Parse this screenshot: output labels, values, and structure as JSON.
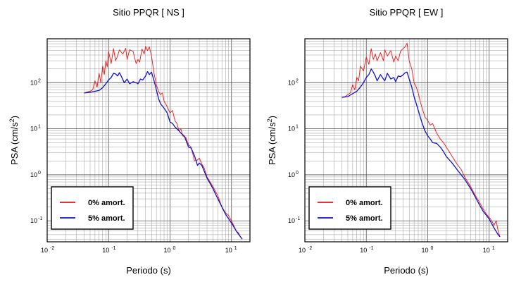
{
  "chart_data": [
    {
      "type": "line",
      "title": "Sitio PPQR [ NS ]",
      "xlabel": "Periodo (s)",
      "ylabel": "PSA (cm/s",
      "ylabel_sup": "2",
      "ylabel_close": ")",
      "xscale": "log",
      "yscale": "log",
      "xlim": [
        0.01,
        20
      ],
      "ylim": [
        0.035,
        900
      ],
      "xticks": [
        {
          "base": "10",
          "exp": "-2",
          "v": 0.01
        },
        {
          "base": "10",
          "exp": "-1",
          "v": 0.1
        },
        {
          "base": "10",
          "exp": "0",
          "v": 1
        },
        {
          "base": "10",
          "exp": "1",
          "v": 10
        }
      ],
      "yticks": [
        {
          "base": "10",
          "exp": "-1",
          "v": 0.1
        },
        {
          "base": "10",
          "exp": "0",
          "v": 1
        },
        {
          "base": "10",
          "exp": "1",
          "v": 10
        },
        {
          "base": "10",
          "exp": "2",
          "v": 100
        }
      ],
      "grid": true,
      "legend_position": "bottom-left",
      "series": [
        {
          "name": "0% amort.",
          "color": "#ee1111",
          "points": [
            [
              0.04,
              60
            ],
            [
              0.045,
              63
            ],
            [
              0.05,
              65
            ],
            [
              0.055,
              70
            ],
            [
              0.06,
              110
            ],
            [
              0.065,
              80
            ],
            [
              0.07,
              160
            ],
            [
              0.075,
              100
            ],
            [
              0.08,
              230
            ],
            [
              0.085,
              150
            ],
            [
              0.09,
              300
            ],
            [
              0.095,
              220
            ],
            [
              0.1,
              480
            ],
            [
              0.11,
              260
            ],
            [
              0.12,
              550
            ],
            [
              0.13,
              300
            ],
            [
              0.14,
              380
            ],
            [
              0.15,
              520
            ],
            [
              0.17,
              420
            ],
            [
              0.19,
              560
            ],
            [
              0.2,
              320
            ],
            [
              0.22,
              520
            ],
            [
              0.25,
              480
            ],
            [
              0.28,
              260
            ],
            [
              0.3,
              320
            ],
            [
              0.32,
              280
            ],
            [
              0.35,
              540
            ],
            [
              0.38,
              420
            ],
            [
              0.4,
              620
            ],
            [
              0.43,
              500
            ],
            [
              0.46,
              600
            ],
            [
              0.5,
              380
            ],
            [
              0.55,
              160
            ],
            [
              0.6,
              90
            ],
            [
              0.65,
              65
            ],
            [
              0.7,
              55
            ],
            [
              0.75,
              60
            ],
            [
              0.8,
              40
            ],
            [
              0.9,
              30
            ],
            [
              1.0,
              22
            ],
            [
              1.1,
              25
            ],
            [
              1.2,
              15
            ],
            [
              1.3,
              13
            ],
            [
              1.4,
              9
            ],
            [
              1.5,
              10
            ],
            [
              1.6,
              7
            ],
            [
              1.8,
              6.5
            ],
            [
              2.0,
              4.5
            ],
            [
              2.2,
              4
            ],
            [
              2.5,
              2
            ],
            [
              2.8,
              2.1
            ],
            [
              3.0,
              2.3
            ],
            [
              3.3,
              1.7
            ],
            [
              3.6,
              1.4
            ],
            [
              4.0,
              0.9
            ],
            [
              5.0,
              0.55
            ],
            [
              6.0,
              0.35
            ],
            [
              7.0,
              0.2
            ],
            [
              8.0,
              0.15
            ],
            [
              9.0,
              0.13
            ],
            [
              10.0,
              0.1
            ],
            [
              12.0,
              0.06
            ],
            [
              13.0,
              0.055
            ],
            [
              14.0,
              0.045
            ]
          ]
        },
        {
          "name": "5% amort.",
          "color": "#1111cc",
          "points": [
            [
              0.04,
              60
            ],
            [
              0.05,
              62
            ],
            [
              0.06,
              65
            ],
            [
              0.07,
              68
            ],
            [
              0.08,
              78
            ],
            [
              0.09,
              95
            ],
            [
              0.1,
              115
            ],
            [
              0.11,
              130
            ],
            [
              0.12,
              160
            ],
            [
              0.13,
              155
            ],
            [
              0.14,
              140
            ],
            [
              0.15,
              165
            ],
            [
              0.16,
              140
            ],
            [
              0.18,
              100
            ],
            [
              0.2,
              120
            ],
            [
              0.22,
              95
            ],
            [
              0.25,
              105
            ],
            [
              0.28,
              100
            ],
            [
              0.3,
              95
            ],
            [
              0.33,
              120
            ],
            [
              0.36,
              115
            ],
            [
              0.4,
              140
            ],
            [
              0.43,
              175
            ],
            [
              0.46,
              150
            ],
            [
              0.5,
              170
            ],
            [
              0.55,
              110
            ],
            [
              0.6,
              70
            ],
            [
              0.65,
              45
            ],
            [
              0.7,
              35
            ],
            [
              0.8,
              28
            ],
            [
              0.9,
              22
            ],
            [
              1.0,
              14
            ],
            [
              1.1,
              13
            ],
            [
              1.2,
              11
            ],
            [
              1.4,
              9
            ],
            [
              1.5,
              8
            ],
            [
              1.7,
              7
            ],
            [
              2.0,
              4
            ],
            [
              2.2,
              3.8
            ],
            [
              2.5,
              2.6
            ],
            [
              2.8,
              1.6
            ],
            [
              3.0,
              1.8
            ],
            [
              3.3,
              1.6
            ],
            [
              3.6,
              1.2
            ],
            [
              4.0,
              0.85
            ],
            [
              5.0,
              0.5
            ],
            [
              6.0,
              0.3
            ],
            [
              7.0,
              0.2
            ],
            [
              8.0,
              0.14
            ],
            [
              10.0,
              0.09
            ],
            [
              12.0,
              0.06
            ],
            [
              14.0,
              0.045
            ],
            [
              15.0,
              0.04
            ]
          ]
        }
      ]
    },
    {
      "type": "line",
      "title": "Sitio PPQR [ EW ]",
      "xlabel": "Periodo (s)",
      "ylabel": "PSA (cm/s",
      "ylabel_sup": "2",
      "ylabel_close": ")",
      "xscale": "log",
      "yscale": "log",
      "xlim": [
        0.01,
        20
      ],
      "ylim": [
        0.035,
        900
      ],
      "xticks": [
        {
          "base": "10",
          "exp": "-2",
          "v": 0.01
        },
        {
          "base": "10",
          "exp": "-1",
          "v": 0.1
        },
        {
          "base": "10",
          "exp": "0",
          "v": 1
        },
        {
          "base": "10",
          "exp": "1",
          "v": 10
        }
      ],
      "yticks": [
        {
          "base": "10",
          "exp": "-1",
          "v": 0.1
        },
        {
          "base": "10",
          "exp": "0",
          "v": 1
        },
        {
          "base": "10",
          "exp": "1",
          "v": 10
        },
        {
          "base": "10",
          "exp": "2",
          "v": 100
        }
      ],
      "grid": true,
      "legend_position": "bottom-left",
      "series": [
        {
          "name": "0% amort.",
          "color": "#ee1111",
          "points": [
            [
              0.04,
              48
            ],
            [
              0.045,
              50
            ],
            [
              0.05,
              55
            ],
            [
              0.055,
              60
            ],
            [
              0.06,
              90
            ],
            [
              0.065,
              70
            ],
            [
              0.07,
              130
            ],
            [
              0.075,
              110
            ],
            [
              0.08,
              230
            ],
            [
              0.09,
              180
            ],
            [
              0.1,
              360
            ],
            [
              0.11,
              250
            ],
            [
              0.12,
              550
            ],
            [
              0.13,
              320
            ],
            [
              0.14,
              420
            ],
            [
              0.15,
              300
            ],
            [
              0.17,
              450
            ],
            [
              0.19,
              300
            ],
            [
              0.2,
              520
            ],
            [
              0.22,
              380
            ],
            [
              0.25,
              500
            ],
            [
              0.28,
              280
            ],
            [
              0.3,
              380
            ],
            [
              0.33,
              300
            ],
            [
              0.36,
              480
            ],
            [
              0.4,
              560
            ],
            [
              0.43,
              600
            ],
            [
              0.46,
              720
            ],
            [
              0.5,
              300
            ],
            [
              0.55,
              200
            ],
            [
              0.6,
              100
            ],
            [
              0.65,
              80
            ],
            [
              0.7,
              60
            ],
            [
              0.75,
              40
            ],
            [
              0.8,
              30
            ],
            [
              0.9,
              18
            ],
            [
              1.0,
              15
            ],
            [
              1.1,
              12
            ],
            [
              1.2,
              13
            ],
            [
              1.4,
              8
            ],
            [
              1.6,
              6
            ],
            [
              1.8,
              5
            ],
            [
              2.0,
              4
            ],
            [
              2.5,
              2.5
            ],
            [
              3.0,
              1.7
            ],
            [
              3.5,
              1.3
            ],
            [
              4.0,
              0.9
            ],
            [
              5.0,
              0.55
            ],
            [
              6.0,
              0.35
            ],
            [
              7.0,
              0.25
            ],
            [
              8.0,
              0.18
            ],
            [
              9.0,
              0.14
            ],
            [
              10.0,
              0.12
            ],
            [
              11.0,
              0.1
            ],
            [
              12.0,
              0.08
            ],
            [
              13.0,
              0.1
            ],
            [
              14.0,
              0.06
            ],
            [
              15.0,
              0.045
            ]
          ]
        },
        {
          "name": "5% amort.",
          "color": "#1111cc",
          "points": [
            [
              0.04,
              48
            ],
            [
              0.05,
              50
            ],
            [
              0.06,
              58
            ],
            [
              0.07,
              65
            ],
            [
              0.08,
              80
            ],
            [
              0.09,
              100
            ],
            [
              0.1,
              130
            ],
            [
              0.11,
              150
            ],
            [
              0.12,
              200
            ],
            [
              0.13,
              170
            ],
            [
              0.14,
              140
            ],
            [
              0.15,
              110
            ],
            [
              0.17,
              150
            ],
            [
              0.19,
              120
            ],
            [
              0.2,
              110
            ],
            [
              0.22,
              160
            ],
            [
              0.25,
              120
            ],
            [
              0.28,
              130
            ],
            [
              0.3,
              105
            ],
            [
              0.33,
              140
            ],
            [
              0.36,
              135
            ],
            [
              0.4,
              150
            ],
            [
              0.43,
              165
            ],
            [
              0.46,
              170
            ],
            [
              0.5,
              120
            ],
            [
              0.55,
              80
            ],
            [
              0.6,
              50
            ],
            [
              0.65,
              35
            ],
            [
              0.7,
              25
            ],
            [
              0.8,
              14
            ],
            [
              0.9,
              9
            ],
            [
              1.0,
              7
            ],
            [
              1.1,
              6
            ],
            [
              1.2,
              5
            ],
            [
              1.4,
              4.8
            ],
            [
              1.6,
              4
            ],
            [
              1.8,
              3.2
            ],
            [
              2.0,
              2.5
            ],
            [
              2.5,
              1.8
            ],
            [
              3.0,
              1.3
            ],
            [
              4.0,
              0.8
            ],
            [
              5.0,
              0.5
            ],
            [
              6.0,
              0.32
            ],
            [
              7.0,
              0.22
            ],
            [
              8.0,
              0.16
            ],
            [
              10.0,
              0.11
            ],
            [
              12.0,
              0.07
            ],
            [
              14.0,
              0.05
            ],
            [
              15.0,
              0.045
            ]
          ]
        }
      ]
    }
  ]
}
